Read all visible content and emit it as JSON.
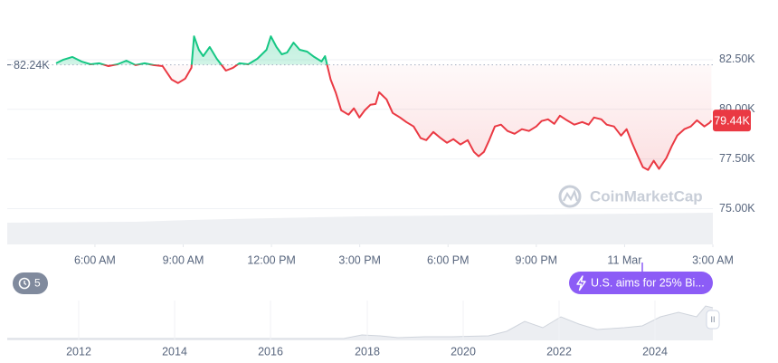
{
  "chart_data": {
    "type": "line",
    "x": [
      4.68,
      4.93,
      5.23,
      5.54,
      5.85,
      6.15,
      6.46,
      6.77,
      7.07,
      7.38,
      7.69,
      7.99,
      8.3,
      8.61,
      8.82,
      9.07,
      9.28,
      9.37,
      9.53,
      9.68,
      9.9,
      10.14,
      10.45,
      10.69,
      10.91,
      11.21,
      11.52,
      11.83,
      11.98,
      12.17,
      12.35,
      12.53,
      12.75,
      12.96,
      13.21,
      13.45,
      13.7,
      13.82,
      14.01,
      14.19,
      14.37,
      14.62,
      14.8,
      14.99,
      15.17,
      15.36,
      15.54,
      15.66,
      15.91,
      16.12,
      16.37,
      16.58,
      16.83,
      17.07,
      17.26,
      17.5,
      17.75,
      17.96,
      18.18,
      18.42,
      18.67,
      18.88,
      19.04,
      19.22,
      19.4,
      19.59,
      19.8,
      20.02,
      20.26,
      20.51,
      20.75,
      21.0,
      21.18,
      21.4,
      21.61,
      21.8,
      22.04,
      22.29,
      22.56,
      22.78,
      22.96,
      23.21,
      23.39,
      23.64,
      23.88,
      24.07,
      24.25,
      24.44,
      24.62,
      24.8,
      24.99,
      25.17,
      25.42,
      25.6,
      25.79,
      26.03,
      26.25,
      26.46,
      26.71,
      26.89,
      26.95
    ],
    "values": [
      82320,
      82500,
      82640,
      82410,
      82270,
      82320,
      82180,
      82270,
      82450,
      82230,
      82320,
      82230,
      82180,
      81500,
      81320,
      81550,
      82090,
      83680,
      83000,
      82680,
      83140,
      82550,
      81950,
      82090,
      82320,
      82270,
      82550,
      83000,
      83680,
      83140,
      82770,
      82860,
      83360,
      83000,
      82910,
      82640,
      82410,
      82680,
      81500,
      80820,
      79950,
      79730,
      80050,
      79590,
      79950,
      80230,
      80270,
      80860,
      80500,
      79820,
      79590,
      79360,
      79140,
      78550,
      78450,
      78860,
      78550,
      78320,
      78500,
      78230,
      78450,
      77860,
      77640,
      77860,
      78450,
      79140,
      79230,
      78910,
      78770,
      79000,
      78910,
      79140,
      79410,
      79500,
      79270,
      79680,
      79450,
      79230,
      79360,
      79230,
      79590,
      79500,
      79230,
      79140,
      78680,
      79000,
      78320,
      77680,
      77090,
      76950,
      77410,
      77000,
      77550,
      78140,
      78680,
      79000,
      79140,
      79450,
      79140,
      79320,
      79440
    ],
    "xlim": [
      3.02,
      27.0
    ],
    "xticks": [
      {
        "value": 6,
        "label": "6:00 AM"
      },
      {
        "value": 9,
        "label": "9:00 AM"
      },
      {
        "value": 12,
        "label": "12:00 PM"
      },
      {
        "value": 15,
        "label": "3:00 PM"
      },
      {
        "value": 18,
        "label": "6:00 PM"
      },
      {
        "value": 21,
        "label": "9:00 PM"
      },
      {
        "value": 24,
        "label": "11 Mar"
      },
      {
        "value": 27,
        "label": "3:00 AM"
      }
    ],
    "ylim": [
      73200,
      85050
    ],
    "yticks": [
      {
        "value": 75000,
        "label": "75.00K"
      },
      {
        "value": 77500,
        "label": "77.50K"
      },
      {
        "value": 80000,
        "label": "80.00K"
      },
      {
        "value": 82500,
        "label": "82.50K"
      }
    ],
    "baseline": {
      "value": 82240,
      "label": "82.24K"
    },
    "last_price": {
      "value": 79440,
      "label": "79.44K"
    },
    "up_color": "#16c784",
    "down_color": "#ea3943",
    "grid": true
  },
  "ui": {
    "watermark": "CoinMarketCap",
    "events_count": "5",
    "event_label": "U.S. aims for 25% Bi...",
    "overview_years": [
      "2012",
      "2014",
      "2016",
      "2018",
      "2020",
      "2022",
      "2024"
    ],
    "handle": "II"
  }
}
